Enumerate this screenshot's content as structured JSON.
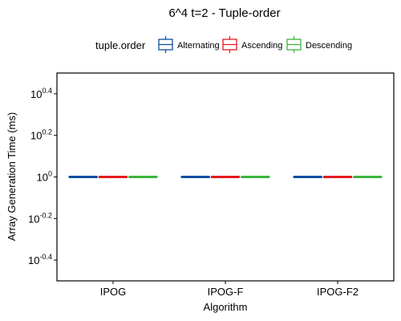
{
  "chart_data": {
    "type": "boxplot",
    "title": "6^4 t=2 - Tuple-order",
    "xlabel": "Algorithm",
    "ylabel": "Array Generation Time (ms)",
    "y_scale": "log10",
    "ylim_exponent": [
      -0.5,
      0.5
    ],
    "y_tick_exponents": [
      "-0.4",
      "-0.2",
      "0",
      "0.2",
      "0.4"
    ],
    "y_tick_base": "10",
    "categories": [
      "IPOG",
      "IPOG-F",
      "IPOG-F2"
    ],
    "legend": {
      "title": "tuple.order",
      "position": "top",
      "entries": [
        {
          "name": "Alternating",
          "color": "#0b4ea2"
        },
        {
          "name": "Ascending",
          "color": "#e41a1c"
        },
        {
          "name": "Descending",
          "color": "#3cb43c"
        }
      ]
    },
    "series": [
      {
        "name": "Alternating",
        "color": "#0b4ea2",
        "values": [
          1,
          1,
          1
        ]
      },
      {
        "name": "Ascending",
        "color": "#e41a1c",
        "values": [
          1,
          1,
          1
        ]
      },
      {
        "name": "Descending",
        "color": "#3cb43c",
        "values": [
          1,
          1,
          1
        ]
      }
    ],
    "grid": false
  }
}
